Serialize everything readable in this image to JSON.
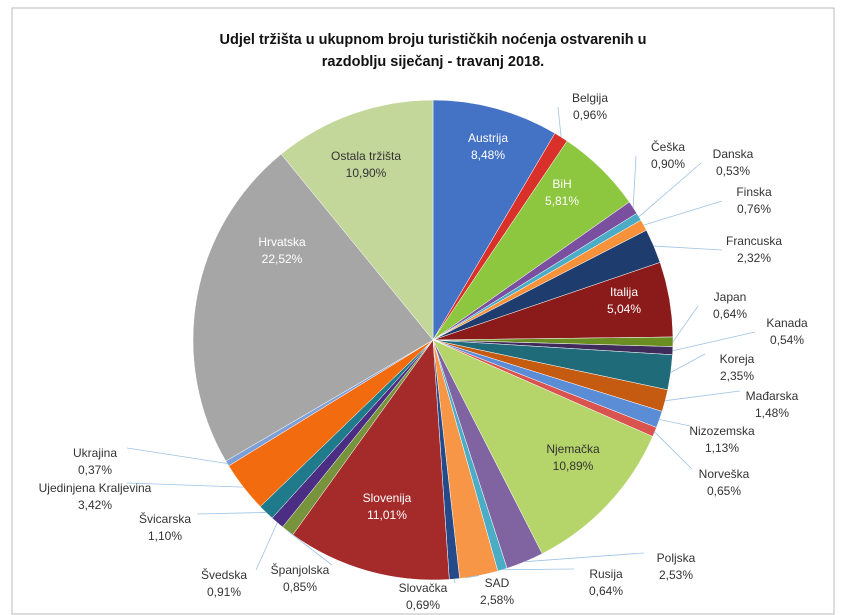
{
  "chart_data": {
    "type": "pie",
    "title": [
      "Udjel tržišta u ukupnom broju turističkih noćenja ostvarenih u",
      "razdoblju siječanj - travanj 2018."
    ],
    "categories": [
      "Austrija",
      "Belgija",
      "BiH",
      "Češka",
      "Danska",
      "Finska",
      "Francuska",
      "Italija",
      "Japan",
      "Kanada",
      "Koreja",
      "Mađarska",
      "Nizozemska",
      "Norveška",
      "Njemačka",
      "Poljska",
      "Rusija",
      "SAD",
      "Slovačka",
      "Slovenija",
      "Španjolska",
      "Švedska",
      "Švicarska",
      "Ujedinjena Kraljevina",
      "Ukrajina",
      "Hrvatska",
      "Ostala tržišta"
    ],
    "values": [
      8.48,
      0.96,
      5.81,
      0.9,
      0.53,
      0.76,
      2.32,
      5.04,
      0.64,
      0.54,
      2.35,
      1.48,
      1.13,
      0.65,
      10.89,
      2.53,
      0.64,
      2.58,
      0.69,
      11.01,
      0.85,
      0.91,
      1.1,
      3.42,
      0.37,
      22.52,
      10.9
    ],
    "value_labels": [
      "8,48%",
      "0,96%",
      "5,81%",
      "0,90%",
      "0,53%",
      "0,76%",
      "2,32%",
      "5,04%",
      "0,64%",
      "0,54%",
      "2,35%",
      "1,48%",
      "1,13%",
      "0,65%",
      "10,89%",
      "2,53%",
      "0,64%",
      "2,58%",
      "0,69%",
      "11,01%",
      "0,85%",
      "0,91%",
      "1,10%",
      "3,42%",
      "0,37%",
      "22,52%",
      "10,90%"
    ],
    "colors": [
      "#4472c4",
      "#d9302a",
      "#8dc63f",
      "#7b4fa0",
      "#4bacc6",
      "#f7923a",
      "#1f3c6e",
      "#8b1a1a",
      "#6b8e23",
      "#3f2a5c",
      "#1f6b7a",
      "#c55a11",
      "#5b8dd6",
      "#d9534f",
      "#b5d56a",
      "#8064a2",
      "#4bacc6",
      "#f79646",
      "#254a8a",
      "#a52a2a",
      "#77933c",
      "#4b2e83",
      "#1f7a8c",
      "#f26b0f",
      "#7da0d8",
      "#a6a6a6",
      "#c4d79b"
    ]
  }
}
